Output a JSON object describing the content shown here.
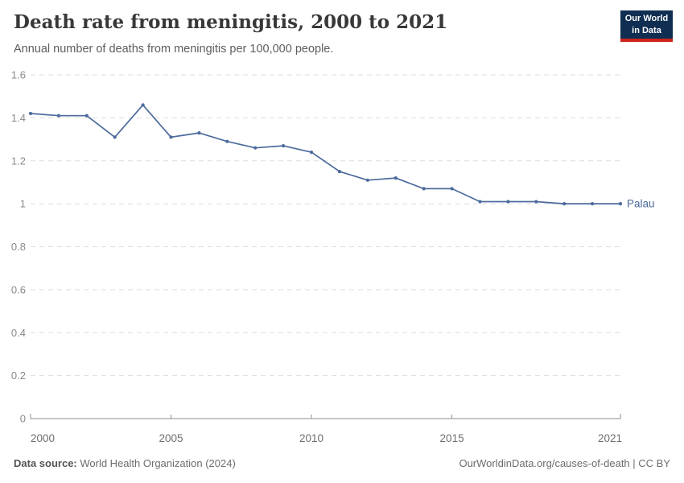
{
  "header": {
    "title": "Death rate from meningitis, 2000 to 2021",
    "subtitle": "Annual number of deaths from meningitis per 100,000 people.",
    "logo": {
      "line1": "Our World",
      "line2": "in Data"
    }
  },
  "footer": {
    "source_label": "Data source:",
    "source_value": " World Health Organization (2024)",
    "link": "OurWorldinData.org/causes-of-death | CC BY"
  },
  "colors": {
    "line": "#4C6A9C",
    "grid": "#dddddd",
    "axis": "#8f8f8f",
    "y_tick_label": "#8a8a8a",
    "x_tick_label": "#6e6e6e",
    "logo_bg": "#0f2e52",
    "logo_red": "#cf241c"
  },
  "chart_data": {
    "type": "line",
    "title": "Death rate from meningitis, 2000 to 2021",
    "subtitle": "Annual number of deaths from meningitis per 100,000 people.",
    "xlabel": "",
    "ylabel": "",
    "xlim": [
      2000,
      2021
    ],
    "ylim": [
      0,
      1.6
    ],
    "grid": "horizontal-dashed",
    "legend_position": "end-of-line-label",
    "x_ticks": [
      "2000",
      "2005",
      "2010",
      "2015",
      "2021"
    ],
    "y_ticks": [
      "0",
      "0.2",
      "0.4",
      "0.6",
      "0.8",
      "1",
      "1.2",
      "1.4",
      "1.6"
    ],
    "series": [
      {
        "name": "Palau",
        "x": [
          2000,
          2001,
          2002,
          2003,
          2004,
          2005,
          2006,
          2007,
          2008,
          2009,
          2010,
          2011,
          2012,
          2013,
          2014,
          2015,
          2016,
          2017,
          2018,
          2019,
          2020,
          2021
        ],
        "values": [
          1.42,
          1.41,
          1.41,
          1.31,
          1.46,
          1.31,
          1.33,
          1.29,
          1.26,
          1.27,
          1.24,
          1.15,
          1.11,
          1.12,
          1.07,
          1.07,
          1.01,
          1.01,
          1.01,
          1.0,
          1.0,
          1.0
        ]
      }
    ]
  }
}
